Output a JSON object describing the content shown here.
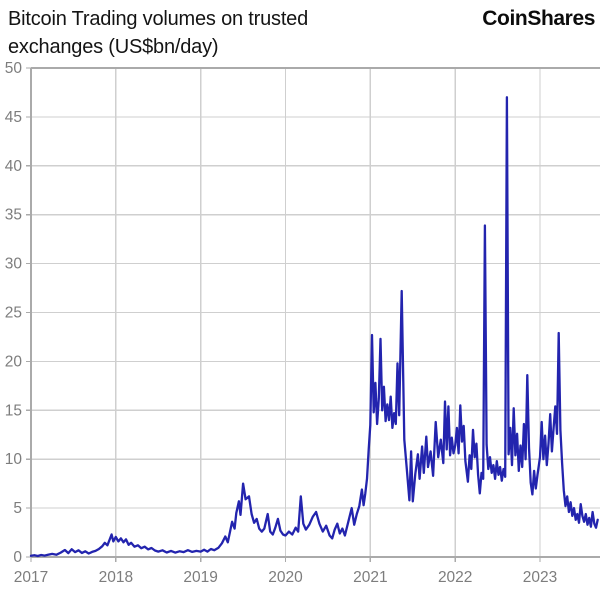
{
  "header": {
    "title_lines": [
      "Bitcoin Trading volumes on trusted",
      "exchanges (US$bn/day)"
    ],
    "logo_text": "CoinShares"
  },
  "chart_data": {
    "type": "line",
    "title": "Bitcoin Trading volumes on trusted exchanges (US$bn/day)",
    "xlabel": "",
    "ylabel": "US$bn/day",
    "xlim": [
      2017,
      2023.707
    ],
    "ylim": [
      0,
      50
    ],
    "x_ticks": [
      2017,
      2018,
      2019,
      2020,
      2021,
      2022,
      2023
    ],
    "y_ticks": [
      0,
      5,
      10,
      15,
      20,
      25,
      30,
      35,
      40,
      45,
      50
    ],
    "grid": true,
    "legend": "none",
    "colors": {
      "line": "#2324ae",
      "grid": "#cfcfcf",
      "frame": "#aaaaaa",
      "tick_text": "#7d7d7d"
    },
    "series": [
      {
        "name": "Bitcoin trading volume on trusted exchanges",
        "points": [
          [
            2017.0,
            0.12
          ],
          [
            2017.04,
            0.18
          ],
          [
            2017.08,
            0.1
          ],
          [
            2017.12,
            0.2
          ],
          [
            2017.16,
            0.14
          ],
          [
            2017.2,
            0.22
          ],
          [
            2017.25,
            0.32
          ],
          [
            2017.3,
            0.24
          ],
          [
            2017.35,
            0.45
          ],
          [
            2017.4,
            0.72
          ],
          [
            2017.44,
            0.4
          ],
          [
            2017.48,
            0.8
          ],
          [
            2017.52,
            0.5
          ],
          [
            2017.56,
            0.68
          ],
          [
            2017.6,
            0.42
          ],
          [
            2017.64,
            0.58
          ],
          [
            2017.68,
            0.36
          ],
          [
            2017.72,
            0.52
          ],
          [
            2017.76,
            0.62
          ],
          [
            2017.8,
            0.82
          ],
          [
            2017.84,
            1.1
          ],
          [
            2017.87,
            1.45
          ],
          [
            2017.9,
            1.2
          ],
          [
            2017.93,
            1.85
          ],
          [
            2017.95,
            2.3
          ],
          [
            2017.97,
            1.6
          ],
          [
            2018.0,
            2.05
          ],
          [
            2018.03,
            1.6
          ],
          [
            2018.06,
            1.9
          ],
          [
            2018.09,
            1.5
          ],
          [
            2018.12,
            1.8
          ],
          [
            2018.15,
            1.25
          ],
          [
            2018.18,
            1.45
          ],
          [
            2018.22,
            1.05
          ],
          [
            2018.26,
            1.2
          ],
          [
            2018.3,
            0.9
          ],
          [
            2018.34,
            1.05
          ],
          [
            2018.38,
            0.78
          ],
          [
            2018.42,
            0.92
          ],
          [
            2018.46,
            0.66
          ],
          [
            2018.5,
            0.55
          ],
          [
            2018.55,
            0.68
          ],
          [
            2018.6,
            0.46
          ],
          [
            2018.65,
            0.62
          ],
          [
            2018.7,
            0.45
          ],
          [
            2018.75,
            0.58
          ],
          [
            2018.8,
            0.5
          ],
          [
            2018.85,
            0.7
          ],
          [
            2018.9,
            0.52
          ],
          [
            2018.95,
            0.62
          ],
          [
            2019.0,
            0.55
          ],
          [
            2019.04,
            0.75
          ],
          [
            2019.08,
            0.55
          ],
          [
            2019.12,
            0.82
          ],
          [
            2019.16,
            0.7
          ],
          [
            2019.21,
            0.95
          ],
          [
            2019.25,
            1.4
          ],
          [
            2019.29,
            2.1
          ],
          [
            2019.32,
            1.5
          ],
          [
            2019.37,
            3.6
          ],
          [
            2019.4,
            2.9
          ],
          [
            2019.42,
            4.5
          ],
          [
            2019.45,
            5.7
          ],
          [
            2019.47,
            4.3
          ],
          [
            2019.5,
            7.5
          ],
          [
            2019.53,
            5.9
          ],
          [
            2019.57,
            6.2
          ],
          [
            2019.6,
            4.4
          ],
          [
            2019.63,
            3.5
          ],
          [
            2019.66,
            3.9
          ],
          [
            2019.69,
            2.9
          ],
          [
            2019.72,
            2.6
          ],
          [
            2019.75,
            2.9
          ],
          [
            2019.79,
            4.4
          ],
          [
            2019.82,
            2.6
          ],
          [
            2019.85,
            2.3
          ],
          [
            2019.88,
            3.0
          ],
          [
            2019.91,
            3.9
          ],
          [
            2019.94,
            2.7
          ],
          [
            2019.97,
            2.3
          ],
          [
            2020.0,
            2.2
          ],
          [
            2020.04,
            2.6
          ],
          [
            2020.08,
            2.3
          ],
          [
            2020.12,
            3.0
          ],
          [
            2020.15,
            2.6
          ],
          [
            2020.18,
            6.2
          ],
          [
            2020.21,
            3.4
          ],
          [
            2020.24,
            2.8
          ],
          [
            2020.28,
            3.3
          ],
          [
            2020.32,
            4.1
          ],
          [
            2020.36,
            4.6
          ],
          [
            2020.4,
            3.4
          ],
          [
            2020.44,
            2.6
          ],
          [
            2020.48,
            3.2
          ],
          [
            2020.52,
            2.2
          ],
          [
            2020.55,
            1.9
          ],
          [
            2020.58,
            2.8
          ],
          [
            2020.61,
            3.4
          ],
          [
            2020.64,
            2.4
          ],
          [
            2020.67,
            2.9
          ],
          [
            2020.7,
            2.2
          ],
          [
            2020.74,
            3.6
          ],
          [
            2020.78,
            5.0
          ],
          [
            2020.81,
            3.3
          ],
          [
            2020.84,
            4.4
          ],
          [
            2020.87,
            5.2
          ],
          [
            2020.9,
            6.9
          ],
          [
            2020.92,
            5.3
          ],
          [
            2020.94,
            6.5
          ],
          [
            2020.96,
            8.0
          ],
          [
            2020.98,
            11.0
          ],
          [
            2021.0,
            13.5
          ],
          [
            2021.02,
            22.7
          ],
          [
            2021.04,
            14.8
          ],
          [
            2021.06,
            17.8
          ],
          [
            2021.08,
            13.6
          ],
          [
            2021.1,
            16.2
          ],
          [
            2021.12,
            22.3
          ],
          [
            2021.14,
            15.0
          ],
          [
            2021.16,
            17.4
          ],
          [
            2021.18,
            13.9
          ],
          [
            2021.2,
            15.6
          ],
          [
            2021.22,
            14.0
          ],
          [
            2021.24,
            16.4
          ],
          [
            2021.26,
            13.2
          ],
          [
            2021.28,
            14.7
          ],
          [
            2021.3,
            13.6
          ],
          [
            2021.32,
            19.8
          ],
          [
            2021.34,
            14.5
          ],
          [
            2021.37,
            27.2
          ],
          [
            2021.4,
            12.0
          ],
          [
            2021.43,
            9.0
          ],
          [
            2021.46,
            5.8
          ],
          [
            2021.48,
            10.8
          ],
          [
            2021.5,
            5.7
          ],
          [
            2021.53,
            8.5
          ],
          [
            2021.56,
            10.5
          ],
          [
            2021.58,
            8.0
          ],
          [
            2021.61,
            11.3
          ],
          [
            2021.63,
            8.6
          ],
          [
            2021.66,
            12.3
          ],
          [
            2021.68,
            9.2
          ],
          [
            2021.71,
            10.8
          ],
          [
            2021.74,
            8.3
          ],
          [
            2021.77,
            13.8
          ],
          [
            2021.8,
            10.2
          ],
          [
            2021.83,
            12.0
          ],
          [
            2021.86,
            9.6
          ],
          [
            2021.88,
            15.9
          ],
          [
            2021.9,
            11.0
          ],
          [
            2021.92,
            15.4
          ],
          [
            2021.94,
            10.4
          ],
          [
            2021.96,
            12.2
          ],
          [
            2021.98,
            10.6
          ],
          [
            2022.0,
            11.4
          ],
          [
            2022.02,
            13.2
          ],
          [
            2022.04,
            10.6
          ],
          [
            2022.06,
            15.5
          ],
          [
            2022.08,
            11.8
          ],
          [
            2022.1,
            13.4
          ],
          [
            2022.12,
            9.8
          ],
          [
            2022.15,
            7.7
          ],
          [
            2022.17,
            10.4
          ],
          [
            2022.19,
            9.0
          ],
          [
            2022.21,
            13.0
          ],
          [
            2022.23,
            10.2
          ],
          [
            2022.25,
            11.6
          ],
          [
            2022.27,
            8.4
          ],
          [
            2022.29,
            6.5
          ],
          [
            2022.31,
            8.6
          ],
          [
            2022.33,
            8.0
          ],
          [
            2022.35,
            33.9
          ],
          [
            2022.37,
            11.5
          ],
          [
            2022.39,
            9.0
          ],
          [
            2022.41,
            10.2
          ],
          [
            2022.43,
            8.6
          ],
          [
            2022.45,
            9.4
          ],
          [
            2022.47,
            8.0
          ],
          [
            2022.49,
            9.8
          ],
          [
            2022.51,
            8.4
          ],
          [
            2022.53,
            9.2
          ],
          [
            2022.55,
            7.8
          ],
          [
            2022.57,
            9.0
          ],
          [
            2022.59,
            8.2
          ],
          [
            2022.61,
            47.0
          ],
          [
            2022.63,
            10.5
          ],
          [
            2022.65,
            13.2
          ],
          [
            2022.67,
            9.4
          ],
          [
            2022.69,
            15.2
          ],
          [
            2022.71,
            10.4
          ],
          [
            2022.73,
            12.6
          ],
          [
            2022.75,
            8.8
          ],
          [
            2022.77,
            11.4
          ],
          [
            2022.79,
            9.2
          ],
          [
            2022.81,
            13.6
          ],
          [
            2022.83,
            10.0
          ],
          [
            2022.85,
            18.6
          ],
          [
            2022.87,
            11.2
          ],
          [
            2022.89,
            7.6
          ],
          [
            2022.91,
            6.4
          ],
          [
            2022.93,
            8.8
          ],
          [
            2022.95,
            7.0
          ],
          [
            2022.97,
            8.4
          ],
          [
            2023.0,
            10.2
          ],
          [
            2023.02,
            13.8
          ],
          [
            2023.04,
            10.0
          ],
          [
            2023.06,
            12.4
          ],
          [
            2023.08,
            9.4
          ],
          [
            2023.1,
            11.6
          ],
          [
            2023.12,
            14.6
          ],
          [
            2023.14,
            10.8
          ],
          [
            2023.16,
            13.2
          ],
          [
            2023.18,
            15.4
          ],
          [
            2023.2,
            12.6
          ],
          [
            2023.22,
            22.9
          ],
          [
            2023.24,
            13.0
          ],
          [
            2023.26,
            9.6
          ],
          [
            2023.28,
            6.8
          ],
          [
            2023.3,
            5.2
          ],
          [
            2023.32,
            6.2
          ],
          [
            2023.34,
            4.6
          ],
          [
            2023.36,
            5.6
          ],
          [
            2023.38,
            4.2
          ],
          [
            2023.4,
            5.0
          ],
          [
            2023.42,
            3.8
          ],
          [
            2023.44,
            4.4
          ],
          [
            2023.46,
            3.5
          ],
          [
            2023.48,
            5.4
          ],
          [
            2023.5,
            4.2
          ],
          [
            2023.52,
            3.6
          ],
          [
            2023.54,
            4.4
          ],
          [
            2023.56,
            3.3
          ],
          [
            2023.58,
            4.0
          ],
          [
            2023.6,
            3.1
          ],
          [
            2023.62,
            4.6
          ],
          [
            2023.64,
            3.4
          ],
          [
            2023.66,
            3.0
          ],
          [
            2023.68,
            3.8
          ]
        ]
      }
    ]
  }
}
